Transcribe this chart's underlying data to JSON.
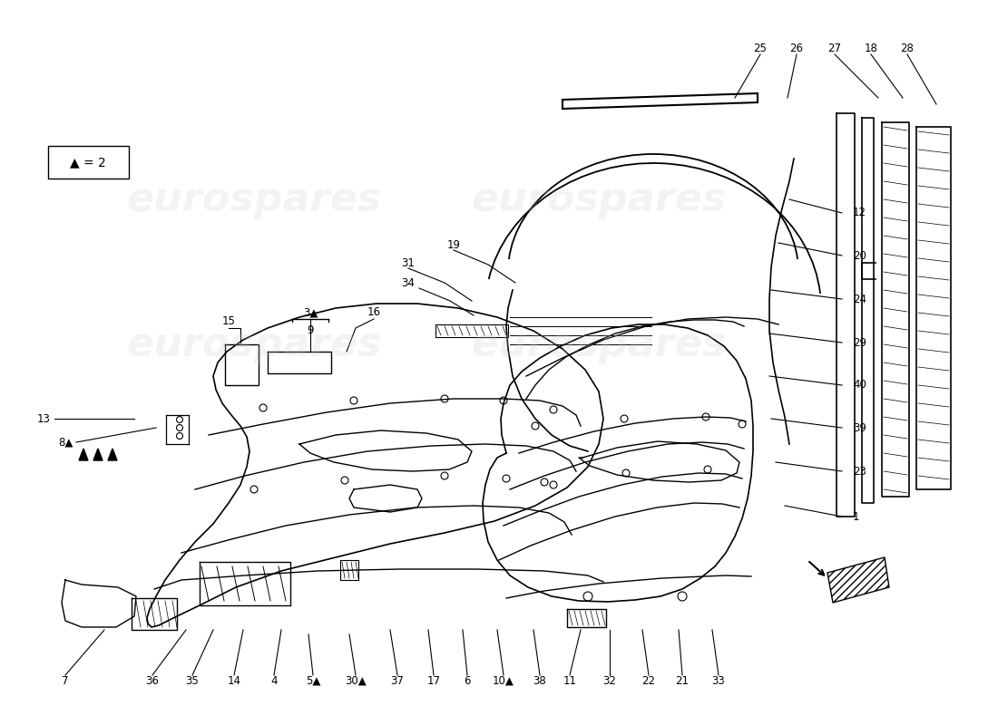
{
  "bg_color": "#ffffff",
  "line_color": "#000000",
  "watermark_text": "eurospares",
  "legend_text": "▲ = 2",
  "bottom_labels": [
    [
      72,
      745,
      115,
      695,
      "7"
    ],
    [
      168,
      745,
      205,
      695,
      "36"
    ],
    [
      212,
      745,
      235,
      695,
      "35"
    ],
    [
      258,
      745,
      268,
      695,
      "14"
    ],
    [
      302,
      745,
      310,
      695,
      "4"
    ],
    [
      345,
      745,
      340,
      700,
      "5▲"
    ],
    [
      392,
      745,
      385,
      700,
      "30▲"
    ],
    [
      438,
      745,
      430,
      695,
      "37"
    ],
    [
      478,
      745,
      472,
      695,
      "17"
    ],
    [
      515,
      745,
      510,
      695,
      "6"
    ],
    [
      555,
      745,
      548,
      695,
      "10▲"
    ],
    [
      595,
      745,
      588,
      695,
      "38"
    ]
  ],
  "right_labels": [
    [
      940,
      235,
      870,
      220,
      "12"
    ],
    [
      940,
      282,
      858,
      268,
      "20"
    ],
    [
      940,
      330,
      850,
      320,
      "24"
    ],
    [
      940,
      378,
      848,
      368,
      "29"
    ],
    [
      940,
      425,
      848,
      415,
      "40"
    ],
    [
      940,
      472,
      850,
      462,
      "39"
    ],
    [
      940,
      520,
      855,
      510,
      "23"
    ],
    [
      940,
      570,
      865,
      558,
      "1"
    ]
  ],
  "top_right_labels": [
    [
      838,
      60,
      810,
      108,
      "25"
    ],
    [
      878,
      60,
      868,
      108,
      "26"
    ],
    [
      920,
      60,
      968,
      108,
      "27"
    ],
    [
      960,
      60,
      995,
      108,
      "18"
    ],
    [
      1000,
      60,
      1032,
      115,
      "28"
    ]
  ],
  "bottom_right_labels": [
    [
      628,
      745,
      640,
      695,
      "11"
    ],
    [
      672,
      745,
      672,
      695,
      "32"
    ],
    [
      715,
      745,
      708,
      695,
      "22"
    ],
    [
      752,
      745,
      748,
      695,
      "21"
    ],
    [
      792,
      745,
      785,
      695,
      "33"
    ]
  ]
}
